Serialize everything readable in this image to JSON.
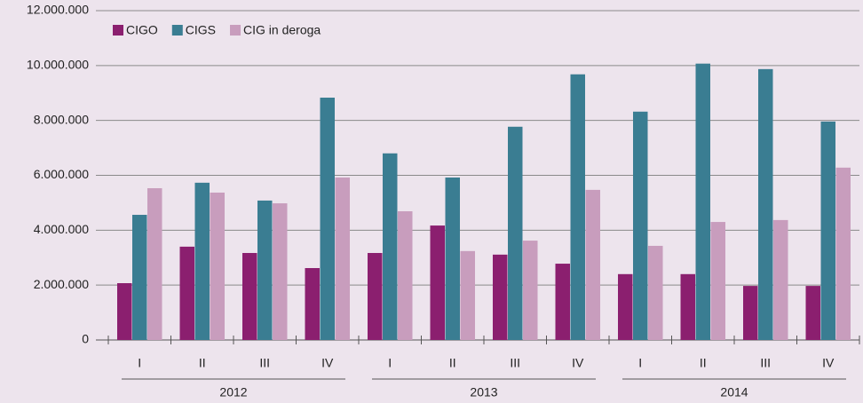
{
  "chart_data": {
    "type": "bar",
    "categories": [
      "I",
      "II",
      "III",
      "IV",
      "I",
      "II",
      "III",
      "IV",
      "I",
      "II",
      "III",
      "IV"
    ],
    "groups": [
      "2012",
      "2013",
      "2014"
    ],
    "series": [
      {
        "name": "CIGO",
        "color": "#8b1f6f",
        "values": [
          2070000,
          3400000,
          3170000,
          2620000,
          3170000,
          4170000,
          3110000,
          2780000,
          2400000,
          2400000,
          1970000,
          1970000
        ]
      },
      {
        "name": "CIGS",
        "color": "#3a7d92",
        "values": [
          4560000,
          5730000,
          5080000,
          8830000,
          6800000,
          5920000,
          7770000,
          9680000,
          8320000,
          10070000,
          9870000,
          7960000
        ]
      },
      {
        "name": "CIG in deroga",
        "color": "#c89dbd",
        "values": [
          5530000,
          5370000,
          4980000,
          5920000,
          4690000,
          3240000,
          3620000,
          5470000,
          3430000,
          4300000,
          4370000,
          6280000
        ]
      }
    ],
    "ylim": [
      0,
      12000000
    ],
    "yticks": [
      0,
      {
        "value": 2000000,
        "label": "2.000.000"
      },
      {
        "value": 4000000,
        "label": "4.000.000"
      },
      {
        "value": 6000000,
        "label": "6.000.000"
      },
      {
        "value": 8000000,
        "label": "8.000.000"
      },
      {
        "value": 10000000,
        "label": "10.000.000"
      },
      {
        "value": 12000000,
        "label": "12.000.000"
      }
    ],
    "grid": true,
    "legend": "top-left"
  }
}
